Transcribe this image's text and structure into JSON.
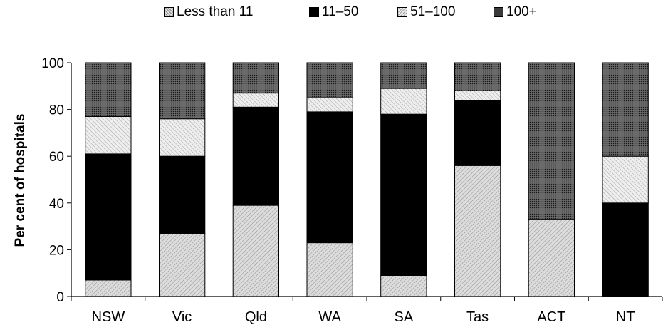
{
  "chart_data": {
    "type": "bar",
    "stacked": true,
    "categories": [
      "NSW",
      "Vic",
      "Qld",
      "WA",
      "SA",
      "Tas",
      "ACT",
      "NT"
    ],
    "series": [
      {
        "name": "Less than 11",
        "values": [
          7,
          27,
          39,
          23,
          9,
          56,
          33,
          0
        ]
      },
      {
        "name": "11–50",
        "values": [
          54,
          33,
          42,
          56,
          69,
          28,
          0,
          40
        ]
      },
      {
        "name": "51–100",
        "values": [
          16,
          16,
          6,
          6,
          11,
          4,
          0,
          20
        ]
      },
      {
        "name": "100+",
        "values": [
          23,
          24,
          13,
          15,
          11,
          12,
          67,
          40
        ]
      }
    ],
    "ylabel": "Per cent of hospitals",
    "ylim": [
      0,
      100
    ],
    "yticks": [
      "0",
      "20",
      "40",
      "60",
      "80",
      "100"
    ],
    "legend_position": "top-center",
    "grid": false
  },
  "colors": {
    "series_fill": [
      "#d2d2d2",
      "#000000",
      "#e6e6e6",
      "#555555"
    ],
    "series_hatch": [
      "#8c8c8c",
      null,
      "#a0a0a0",
      "#222222"
    ]
  }
}
